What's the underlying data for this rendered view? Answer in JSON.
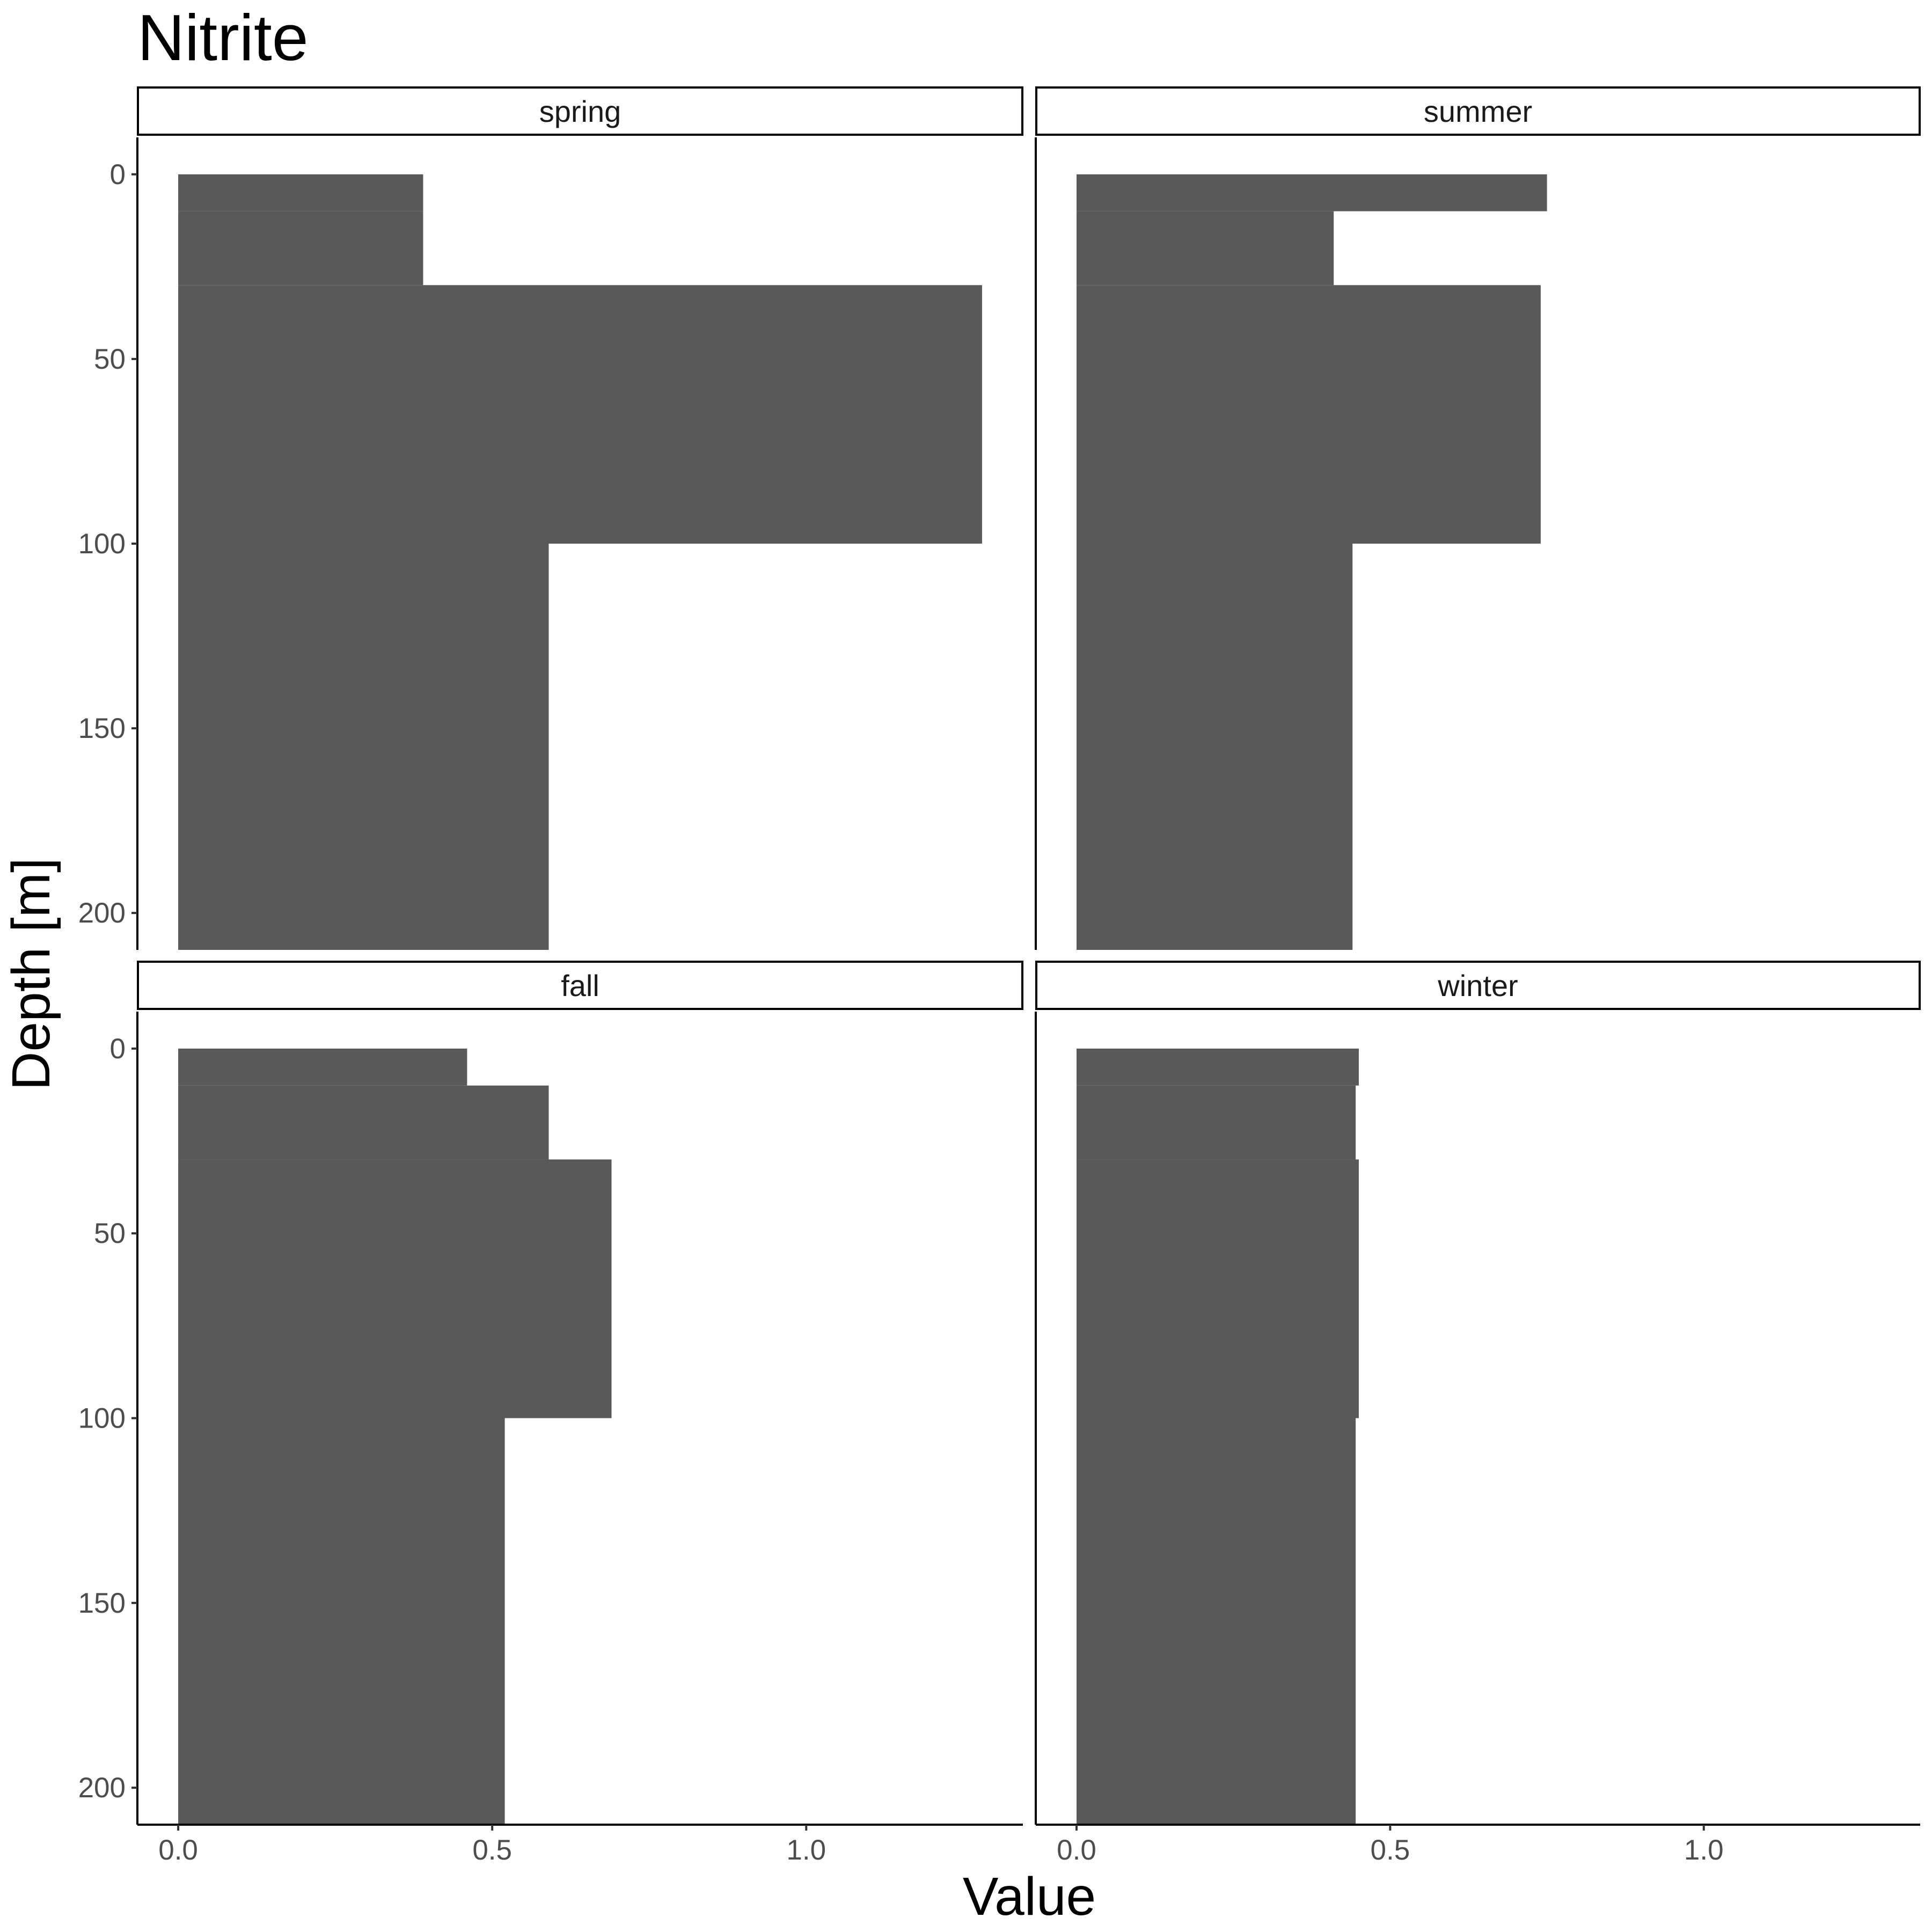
{
  "chart_data": {
    "type": "bar",
    "orientation": "horizontal",
    "title": "Nitrite",
    "xlabel": "Value",
    "ylabel": "Depth [m]",
    "xlim": [
      -0.065,
      1.345
    ],
    "ylim": [
      210,
      -10
    ],
    "y_reversed": true,
    "x_ticks": [
      "0.0",
      "0.5",
      "1.0"
    ],
    "y_ticks": [
      "0",
      "50",
      "100",
      "150",
      "200"
    ],
    "grid": false,
    "bar_color": "#595959",
    "facets": [
      {
        "label": "spring",
        "bars": [
          {
            "depth_from": 0,
            "depth_to": 10,
            "value": 0.39
          },
          {
            "depth_from": 10,
            "depth_to": 30,
            "value": 0.39
          },
          {
            "depth_from": 30,
            "depth_to": 100,
            "value": 1.28
          },
          {
            "depth_from": 100,
            "depth_to": 210,
            "value": 0.59
          }
        ]
      },
      {
        "label": "summer",
        "bars": [
          {
            "depth_from": 0,
            "depth_to": 10,
            "value": 0.75
          },
          {
            "depth_from": 10,
            "depth_to": 30,
            "value": 0.41
          },
          {
            "depth_from": 30,
            "depth_to": 100,
            "value": 0.74
          },
          {
            "depth_from": 100,
            "depth_to": 210,
            "value": 0.44
          }
        ]
      },
      {
        "label": "fall",
        "bars": [
          {
            "depth_from": 0,
            "depth_to": 10,
            "value": 0.46
          },
          {
            "depth_from": 10,
            "depth_to": 30,
            "value": 0.59
          },
          {
            "depth_from": 30,
            "depth_to": 100,
            "value": 0.69
          },
          {
            "depth_from": 100,
            "depth_to": 210,
            "value": 0.52
          }
        ]
      },
      {
        "label": "winter",
        "bars": [
          {
            "depth_from": 0,
            "depth_to": 10,
            "value": 0.45
          },
          {
            "depth_from": 10,
            "depth_to": 30,
            "value": 0.445
          },
          {
            "depth_from": 30,
            "depth_to": 100,
            "value": 0.45
          },
          {
            "depth_from": 100,
            "depth_to": 210,
            "value": 0.445
          }
        ]
      }
    ]
  }
}
